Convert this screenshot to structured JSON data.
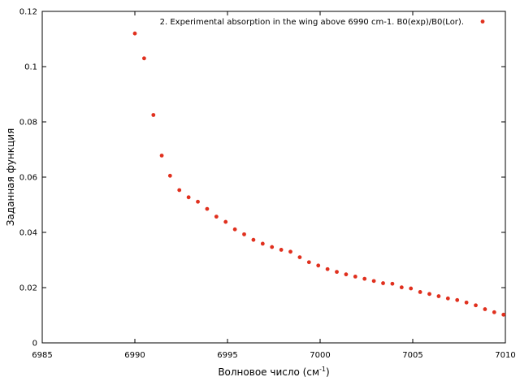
{
  "chart_data": {
    "type": "scatter",
    "xlabel": "Волновое число (см",
    "xlabel_sup": "-1",
    "xlabel_end": ")",
    "ylabel": "Заданная функция",
    "xlim": [
      6985,
      7010
    ],
    "ylim": [
      0,
      0.12
    ],
    "xticks": [
      "6985",
      "6990",
      "6995",
      "7000",
      "7005",
      "7010"
    ],
    "yticks": [
      "0",
      "0.02",
      "0.04",
      "0.06",
      "0.08",
      "0.1",
      "0.12"
    ],
    "grid": false,
    "legend_position": "top-right",
    "series": [
      {
        "name": "2. Experimental absorption in the wing above 6990 cm-1. B0(exp)/B0(Lor).",
        "color": "#e0301e",
        "x": [
          6990.0,
          6990.5,
          6991.0,
          6991.45,
          6991.9,
          6992.4,
          6992.9,
          6993.4,
          6993.9,
          6994.4,
          6994.9,
          6995.4,
          6995.9,
          6996.4,
          6996.9,
          6997.4,
          6997.9,
          6998.4,
          6998.9,
          6999.4,
          6999.9,
          7000.4,
          7000.9,
          7001.4,
          7001.9,
          7002.4,
          7002.9,
          7003.4,
          7003.9,
          7004.4,
          7004.9,
          7005.4,
          7005.9,
          7006.4,
          7006.9,
          7007.4,
          7007.9,
          7008.4,
          7008.9,
          7009.4,
          7009.9
        ],
        "y": [
          0.112,
          0.103,
          0.0825,
          0.0678,
          0.0605,
          0.0553,
          0.0527,
          0.0511,
          0.0485,
          0.0457,
          0.0438,
          0.0411,
          0.0393,
          0.0373,
          0.0359,
          0.0347,
          0.0337,
          0.033,
          0.031,
          0.0292,
          0.028,
          0.0267,
          0.0257,
          0.0248,
          0.024,
          0.0232,
          0.0224,
          0.0216,
          0.0214,
          0.0201,
          0.0197,
          0.0184,
          0.0177,
          0.0169,
          0.0161,
          0.0155,
          0.0146,
          0.0136,
          0.0122,
          0.0111,
          0.0102
        ]
      }
    ]
  }
}
